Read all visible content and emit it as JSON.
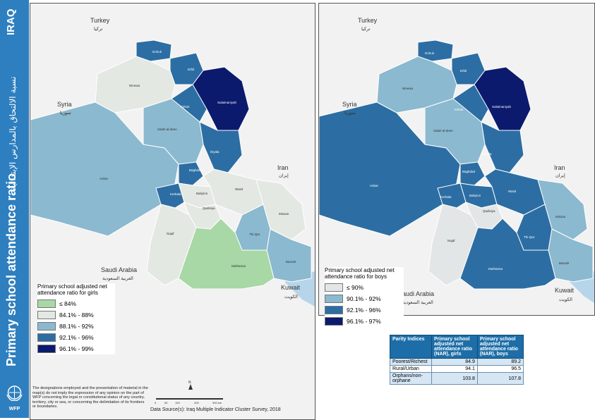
{
  "sidebar": {
    "country": "IRAQ",
    "arabic_title": "نسبة الالتحاق بالمدارس الإبتدائية",
    "title": "Primary school attendance ratio",
    "logo_text": "WFP"
  },
  "countries": {
    "turkey": {
      "en": "Turkey",
      "ar": "تركيا"
    },
    "syria": {
      "en": "Syria",
      "ar": "سوريا"
    },
    "iran": {
      "en": "Iran",
      "ar": "إيران"
    },
    "saudi": {
      "en": "Saudi Arabia",
      "ar": "العربية السعودية"
    },
    "kuwait": {
      "en": "Kuwait",
      "ar": "الكويت"
    }
  },
  "provinces": {
    "dohuk": "Dohuk",
    "erbil": "Erbil",
    "ninewa": "Ninewa",
    "sulaymaniyah": "Sulaimaniyah",
    "kirkuk": "Kirkuk",
    "salah": "Salah al-deen",
    "diyala": "Diyala",
    "anbar": "Anbar",
    "baghdad": "Baghdad",
    "babylon": "Babylon",
    "wasit": "Wasit",
    "kerbala": "Kerbala",
    "qadisiya": "Qadisiya",
    "najaf": "Najaf",
    "missan": "Missan",
    "thiqar": "Thi-Qar",
    "basrah": "Basrah",
    "muthanna": "Muthanna"
  },
  "legend_girls": {
    "title": "Primary school adjusted net attendance ratio for girls",
    "items": [
      {
        "label": "≤ 84%",
        "color": "#a8d8a5"
      },
      {
        "label": "84.1% - 88%",
        "color": "#e3e8e3"
      },
      {
        "label": "88.1% - 92%",
        "color": "#8bb9cf"
      },
      {
        "label": "92.1% - 96%",
        "color": "#2c6ea3"
      },
      {
        "label": "96.1% - 99%",
        "color": "#0c1a6e"
      }
    ]
  },
  "legend_boys": {
    "title": "Primary school adjusted net attendance ratio for boys",
    "items": [
      {
        "label": "≤ 90%",
        "color": "#e3e6e6"
      },
      {
        "label": "90.1% - 92%",
        "color": "#8bb9cf"
      },
      {
        "label": "92.1% - 96%",
        "color": "#2c6ea3"
      },
      {
        "label": "96.1% - 97%",
        "color": "#0c1a6e"
      }
    ]
  },
  "parity_table": {
    "headers": [
      "Parity Indices",
      "Primary school adjusted net attendance ratio (NAR), girls",
      "Primary school adjusted net attendance ratio (NAR), boys"
    ],
    "rows": [
      [
        "Poorest/Richest",
        "84.9",
        "89.2"
      ],
      [
        "Rural/Urban",
        "94.1",
        "96.5"
      ],
      [
        "Orphans/non-orphane",
        "103.8",
        "107.8"
      ]
    ]
  },
  "disclaimer": "The designations employed and the presentation of material in the map(s) do not imply the expression of any opinion on the part of WFP concerning the legal or constitutional status of any country, territory, city or sea, or concerning the delimitation of its frontiers or boundaries.",
  "source": "Data Source(s): Iraq Multiple Indicator Cluster Survey, 2018",
  "scale_bar": {
    "north": "N",
    "labels": [
      "0",
      "50",
      "100",
      "200",
      "300 km"
    ]
  },
  "colors": {
    "sidebar": "#2e7fbf",
    "water": "#dbeaf5",
    "neighbor": "#f0f0f0"
  }
}
